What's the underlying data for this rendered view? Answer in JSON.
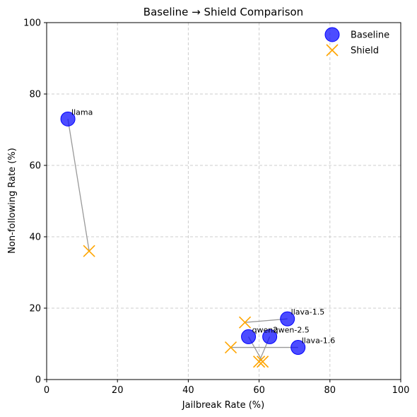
{
  "chart_data": {
    "type": "scatter",
    "title": "Baseline → Shield Comparison",
    "xlabel": "Jailbreak Rate (%)",
    "ylabel": "Non-following Rate (%)",
    "xlim": [
      0,
      100
    ],
    "ylim": [
      0,
      100
    ],
    "xticks": [
      "0",
      "20",
      "40",
      "60",
      "80",
      "100"
    ],
    "yticks": [
      "0",
      "20",
      "40",
      "60",
      "80",
      "100"
    ],
    "grid": true,
    "legend_position": "top-right",
    "series": [
      {
        "name": "Baseline",
        "marker": "circle",
        "color": "#0000ff"
      },
      {
        "name": "Shield",
        "marker": "x",
        "color": "#ffa500"
      }
    ],
    "connector_color": "#999999",
    "points": [
      {
        "label": "llama",
        "baseline": [
          6,
          73
        ],
        "shield": [
          12,
          36
        ]
      },
      {
        "label": "llava-1.5",
        "baseline": [
          68,
          17
        ],
        "shield": [
          56,
          16
        ]
      },
      {
        "label": "qwen-2.5",
        "baseline": [
          63,
          12
        ],
        "shield": [
          60,
          5
        ]
      },
      {
        "label": "qwen2",
        "baseline": [
          57,
          12
        ],
        "shield": [
          61,
          5
        ]
      },
      {
        "label": "llava-1.6",
        "baseline": [
          71,
          9
        ],
        "shield": [
          52,
          9
        ]
      }
    ]
  }
}
